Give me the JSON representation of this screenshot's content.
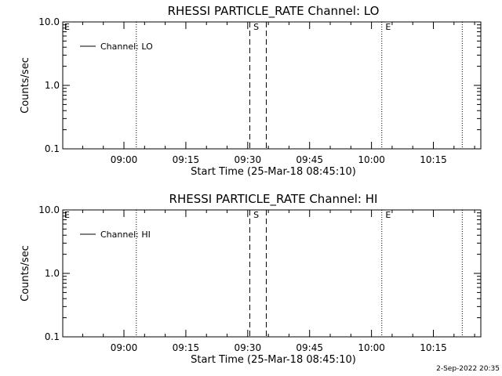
{
  "chart_data": [
    {
      "type": "line",
      "title": "RHESSI PARTICLE_RATE Channel: LO",
      "xlabel": "Start Time (25-Mar-18 08:45:10)",
      "ylabel": "Counts/sec",
      "yscale": "log",
      "ylim": [
        0.1,
        10.0
      ],
      "y_tick_labels": [
        "0.1",
        "1.0",
        "10.0"
      ],
      "y_tick_values": [
        0.1,
        1.0,
        10.0
      ],
      "xlim": [
        "08:45:10",
        "10:26:30"
      ],
      "x_tick_labels": [
        "09:00",
        "09:15",
        "09:30",
        "09:45",
        "10:00",
        "10:15"
      ],
      "x_tick_values": [
        "09:00",
        "09:15",
        "09:30",
        "09:45",
        "10:00",
        "10:15"
      ],
      "legend": {
        "position": "top-left",
        "entries": [
          "Channel: LO"
        ]
      },
      "series": [
        {
          "name": "Channel: LO",
          "values": []
        }
      ],
      "dotted_lines": [
        "09:03:00",
        "10:02:30",
        "10:22:00"
      ],
      "dashed_lines": [
        "09:30:30",
        "09:34:30"
      ],
      "markers": [
        {
          "label": "E",
          "x": "08:45:10"
        },
        {
          "label": "S",
          "x": "09:31:00"
        },
        {
          "label": "E",
          "x": "10:03:00"
        }
      ]
    },
    {
      "type": "line",
      "title": "RHESSI PARTICLE_RATE Channel: HI",
      "xlabel": "Start Time (25-Mar-18 08:45:10)",
      "ylabel": "Counts/sec",
      "yscale": "log",
      "ylim": [
        0.1,
        10.0
      ],
      "y_tick_labels": [
        "0.1",
        "1.0",
        "10.0"
      ],
      "y_tick_values": [
        0.1,
        1.0,
        10.0
      ],
      "xlim": [
        "08:45:10",
        "10:26:30"
      ],
      "x_tick_labels": [
        "09:00",
        "09:15",
        "09:30",
        "09:45",
        "10:00",
        "10:15"
      ],
      "x_tick_values": [
        "09:00",
        "09:15",
        "09:30",
        "09:45",
        "10:00",
        "10:15"
      ],
      "legend": {
        "position": "top-left",
        "entries": [
          "Channel: HI"
        ]
      },
      "series": [
        {
          "name": "Channel: HI",
          "values": []
        }
      ],
      "dotted_lines": [
        "09:03:00",
        "10:02:30",
        "10:22:00"
      ],
      "dashed_lines": [
        "09:30:30",
        "09:34:30"
      ],
      "markers": [
        {
          "label": "E",
          "x": "08:45:10"
        },
        {
          "label": "S",
          "x": "09:31:00"
        },
        {
          "label": "E",
          "x": "10:03:00"
        }
      ]
    }
  ],
  "footer": {
    "timestamp": "2-Sep-2022 20:35"
  }
}
